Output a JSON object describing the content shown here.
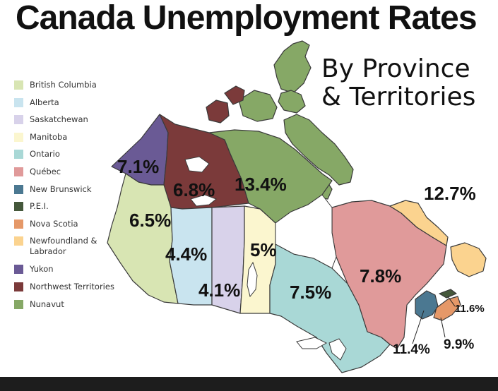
{
  "title": "Canada Unemployment Rates",
  "subtitle": {
    "line1": "By Province",
    "line2": "& Territories"
  },
  "legend": [
    {
      "label": "British Columbia",
      "color": "#d8e5b3"
    },
    {
      "label": "Alberta",
      "color": "#c9e4ef"
    },
    {
      "label": "Saskatchewan",
      "color": "#d8d2ea"
    },
    {
      "label": "Manitoba",
      "color": "#fbf6cf"
    },
    {
      "label": "Ontario",
      "color": "#a9d8d6"
    },
    {
      "label": "Québec",
      "color": "#e09a9a"
    },
    {
      "label": "New Brunswick",
      "color": "#4b7891"
    },
    {
      "label": "P.E.I.",
      "color": "#45583b"
    },
    {
      "label": "Nova Scotia",
      "color": "#e59868"
    },
    {
      "label": "Newfoundland & Labrador",
      "color": "#fbd38f"
    },
    {
      "label": "Yukon",
      "color": "#6a5a95"
    },
    {
      "label": "Northwest Territories",
      "color": "#7b3a3a"
    },
    {
      "label": "Nunavut",
      "color": "#86a866"
    }
  ],
  "regions": {
    "yukon": {
      "rate": "7.1%",
      "color": "#6a5a95"
    },
    "nwt": {
      "rate": "6.8%",
      "color": "#7b3a3a"
    },
    "nunavut": {
      "rate": "13.4%",
      "color": "#86a866"
    },
    "bc": {
      "rate": "6.5%",
      "color": "#d8e5b3"
    },
    "alberta": {
      "rate": "4.4%",
      "color": "#c9e4ef"
    },
    "saskatchewan": {
      "rate": "4.1%",
      "color": "#d8d2ea"
    },
    "manitoba": {
      "rate": "5%",
      "color": "#fbf6cf"
    },
    "ontario": {
      "rate": "7.5%",
      "color": "#a9d8d6"
    },
    "quebec": {
      "rate": "7.8%",
      "color": "#e09a9a"
    },
    "newfoundland": {
      "rate": "12.7%",
      "color": "#fbd38f"
    },
    "new_brunswick": {
      "rate": "11.4%",
      "color": "#4b7891"
    },
    "pei": {
      "rate": "11.6%",
      "color": "#45583b"
    },
    "nova_scotia": {
      "rate": "9.9%",
      "color": "#e59868"
    }
  },
  "colors": {
    "border": "#3a3a3a",
    "footer": "#1d1d1d"
  }
}
